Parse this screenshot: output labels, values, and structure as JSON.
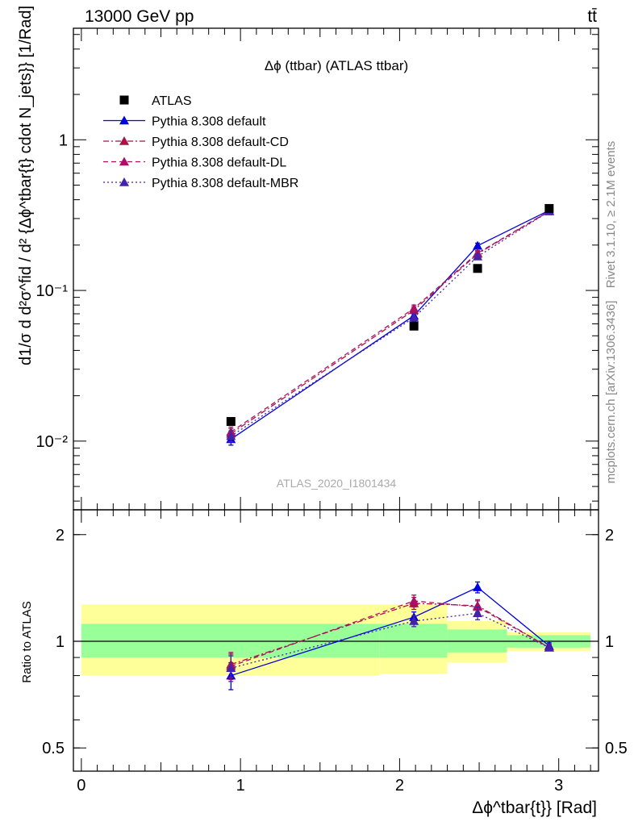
{
  "header": {
    "left": "13000 GeV pp",
    "right": "tt̄"
  },
  "side_labels": {
    "rivet": "Rivet 3.1.10, ≥ 2.1M events",
    "mcplots": "mcplots.cern.ch [arXiv:1306.3436]"
  },
  "chart_data": [
    {
      "type": "scatter",
      "panel": "main",
      "title": "Δϕ (ttbar) (ATLAS ttbar)",
      "watermark": "ATLAS_2020_I1801434",
      "ylabel": "d1/σ d d²σ^fid / d² {Δϕ^tbar{t} cdot N_jets}} [1/Rad]",
      "yscale": "log",
      "ylim": [
        0.0035,
        5.5
      ],
      "xlim": [
        -0.05,
        3.25
      ],
      "ytick_labels": [
        "1",
        "10⁻¹",
        "10⁻²"
      ],
      "legend_position": "top-left",
      "series": [
        {
          "name": "ATLAS",
          "style": "marker-square",
          "color": "#000000",
          "x": [
            0.94,
            2.09,
            2.49,
            2.94
          ],
          "y": [
            0.0135,
            0.058,
            0.14,
            0.35
          ]
        },
        {
          "name": "Pythia 8.308 default",
          "style": "solid",
          "color": "#0000e0",
          "x": [
            0.94,
            2.09,
            2.49,
            2.94
          ],
          "y": [
            0.0103,
            0.068,
            0.198,
            0.34
          ],
          "yerr": [
            0.0009,
            0.004,
            0.008,
            0.008
          ]
        },
        {
          "name": "Pythia 8.308 default-CD",
          "style": "dashdot",
          "color": "#aa1144",
          "x": [
            0.94,
            2.09,
            2.49,
            2.94
          ],
          "y": [
            0.0112,
            0.074,
            0.175,
            0.335
          ],
          "yerr": [
            0.0009,
            0.004,
            0.007,
            0.008
          ]
        },
        {
          "name": "Pythia 8.308 default-DL",
          "style": "dashed",
          "color": "#aa1166",
          "x": [
            0.94,
            2.09,
            2.49,
            2.94
          ],
          "y": [
            0.0115,
            0.076,
            0.177,
            0.336
          ],
          "yerr": [
            0.0009,
            0.004,
            0.007,
            0.008
          ]
        },
        {
          "name": "Pythia 8.308 default-MBR",
          "style": "dotted",
          "color": "#4422aa",
          "x": [
            0.94,
            2.09,
            2.49,
            2.94
          ],
          "y": [
            0.0108,
            0.066,
            0.168,
            0.335
          ],
          "yerr": [
            0.0009,
            0.004,
            0.007,
            0.008
          ]
        }
      ]
    },
    {
      "type": "scatter",
      "panel": "ratio",
      "ylabel": "Ratio to ATLAS",
      "xlabel": "Δϕ^tbar{t}} [Rad]",
      "yscale": "log",
      "ylim": [
        0.43,
        2.35
      ],
      "xlim": [
        -0.05,
        3.25
      ],
      "ytick_labels": [
        "2",
        "1",
        "0.5"
      ],
      "xtick_labels": [
        "0",
        "1",
        "2",
        "3"
      ],
      "reference_line": 1,
      "bands": [
        {
          "x0": 0.0,
          "x1": 1.875,
          "inner": [
            0.9,
            1.12
          ],
          "outer": [
            0.8,
            1.27
          ]
        },
        {
          "x0": 1.875,
          "x1": 2.3,
          "inner": [
            0.9,
            1.12
          ],
          "outer": [
            0.81,
            1.27
          ]
        },
        {
          "x0": 2.3,
          "x1": 2.675,
          "inner": [
            0.93,
            1.08
          ],
          "outer": [
            0.87,
            1.14
          ]
        },
        {
          "x0": 2.675,
          "x1": 3.2,
          "inner": [
            0.96,
            1.04
          ],
          "outer": [
            0.94,
            1.06
          ]
        }
      ],
      "series": [
        {
          "name": "Pythia 8.308 default",
          "style": "solid",
          "color": "#0000e0",
          "x": [
            0.94,
            2.09,
            2.49,
            2.94
          ],
          "y": [
            0.8,
            1.17,
            1.42,
            0.97
          ],
          "yerr": [
            0.07,
            0.04,
            0.05,
            0.02
          ]
        },
        {
          "name": "Pythia 8.308 default-CD",
          "style": "dashdot",
          "color": "#aa1144",
          "x": [
            0.94,
            2.09,
            2.49,
            2.94
          ],
          "y": [
            0.86,
            1.28,
            1.26,
            0.96
          ],
          "yerr": [
            0.07,
            0.05,
            0.05,
            0.02
          ]
        },
        {
          "name": "Pythia 8.308 default-DL",
          "style": "dashed",
          "color": "#aa1166",
          "x": [
            0.94,
            2.09,
            2.49,
            2.94
          ],
          "y": [
            0.85,
            1.3,
            1.25,
            0.96
          ],
          "yerr": [
            0.07,
            0.05,
            0.05,
            0.02
          ]
        },
        {
          "name": "Pythia 8.308 default-MBR",
          "style": "dotted",
          "color": "#4422aa",
          "x": [
            0.94,
            2.09,
            2.49,
            2.94
          ],
          "y": [
            0.84,
            1.14,
            1.2,
            0.96
          ],
          "yerr": [
            0.07,
            0.04,
            0.05,
            0.02
          ]
        }
      ]
    }
  ]
}
